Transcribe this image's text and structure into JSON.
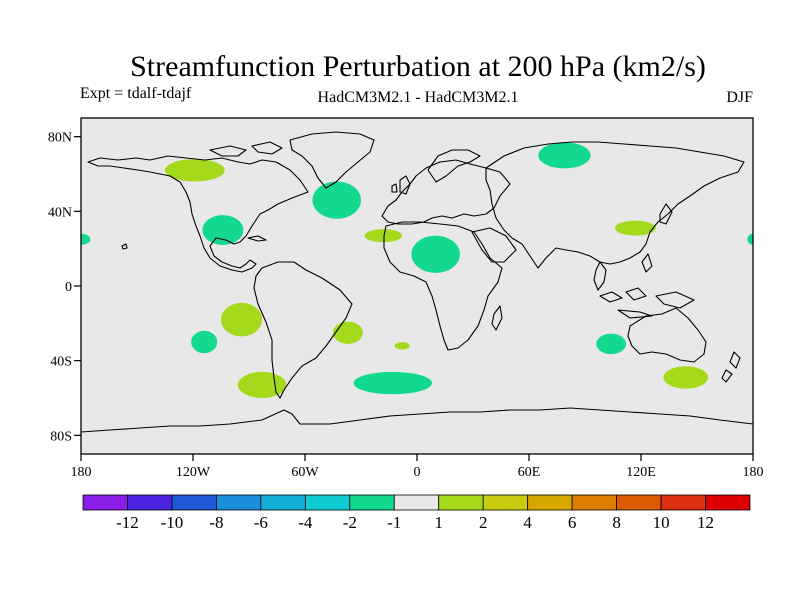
{
  "title": "Streamfunction Perturbation at 200 hPa (km2/s)",
  "experiment_label": "Expt = tdalf-tdajf",
  "model_label": "HadCM3M2.1 - HadCM3M2.1",
  "season_label": "DJF",
  "colors": {
    "background": "#e8e8e8",
    "neg_1_2": "#12d98e",
    "pos_2_4": "#a4d91c"
  },
  "map": {
    "lon_range": [
      -180,
      180
    ],
    "lat_range": [
      -90,
      90
    ],
    "lon_ticks": [
      {
        "value": -180,
        "label": "180"
      },
      {
        "value": -120,
        "label": "120W"
      },
      {
        "value": -60,
        "label": "60W"
      },
      {
        "value": 0,
        "label": "0"
      },
      {
        "value": 60,
        "label": "60E"
      },
      {
        "value": 120,
        "label": "120E"
      },
      {
        "value": 180,
        "label": "180"
      }
    ],
    "lat_ticks": [
      {
        "value": 80,
        "label": "80N"
      },
      {
        "value": 40,
        "label": "40N"
      },
      {
        "value": 0,
        "label": "0"
      },
      {
        "value": -40,
        "label": "40S"
      },
      {
        "value": -80,
        "label": "80S"
      }
    ],
    "anomalies": [
      {
        "lon": -119,
        "lat": 62,
        "rlon": 16,
        "rlat": 6,
        "sign": "pos"
      },
      {
        "lon": -104,
        "lat": 30,
        "rlon": 11,
        "rlat": 8,
        "sign": "neg"
      },
      {
        "lon": -43,
        "lat": 46,
        "rlon": 13,
        "rlat": 10,
        "sign": "neg"
      },
      {
        "lon": -18,
        "lat": 27,
        "rlon": 10,
        "rlat": 3.5,
        "sign": "pos"
      },
      {
        "lon": 10,
        "lat": 17,
        "rlon": 13,
        "rlat": 10,
        "sign": "neg"
      },
      {
        "lon": 79,
        "lat": 70,
        "rlon": 14,
        "rlat": 7,
        "sign": "neg"
      },
      {
        "lon": 117,
        "lat": 31,
        "rlon": 11,
        "rlat": 4,
        "sign": "pos"
      },
      {
        "lon": -180,
        "lat": 25,
        "rlon": 5,
        "rlat": 3,
        "sign": "neg"
      },
      {
        "lon": 180,
        "lat": 25,
        "rlon": 3,
        "rlat": 3,
        "sign": "neg"
      },
      {
        "lon": -94,
        "lat": -18,
        "rlon": 11,
        "rlat": 9,
        "sign": "pos"
      },
      {
        "lon": -114,
        "lat": -30,
        "rlon": 7,
        "rlat": 6,
        "sign": "neg"
      },
      {
        "lon": -37,
        "lat": -25,
        "rlon": 8,
        "rlat": 6,
        "sign": "pos"
      },
      {
        "lon": -8,
        "lat": -32,
        "rlon": 4,
        "rlat": 2,
        "sign": "pos"
      },
      {
        "lon": -83,
        "lat": -53,
        "rlon": 13,
        "rlat": 7,
        "sign": "pos"
      },
      {
        "lon": -13,
        "lat": -52,
        "rlon": 21,
        "rlat": 6,
        "sign": "neg"
      },
      {
        "lon": 104,
        "lat": -31,
        "rlon": 8,
        "rlat": 5.5,
        "sign": "neg"
      },
      {
        "lon": 144,
        "lat": -49,
        "rlon": 12,
        "rlat": 6,
        "sign": "pos"
      }
    ]
  },
  "colorbar": {
    "colors": [
      "#8a1ee6",
      "#4a24e0",
      "#1f58d6",
      "#1a8edb",
      "#12aed6",
      "#10cbd2",
      "#12d98e",
      "#e8e8e8",
      "#a4d91c",
      "#c8cc10",
      "#d8a800",
      "#dc7f00",
      "#dc5a00",
      "#dc2e10",
      "#dc0000"
    ],
    "labels": [
      "-12",
      "-10",
      "-8",
      "-6",
      "-4",
      "-2",
      "-1",
      "1",
      "2",
      "4",
      "6",
      "8",
      "10",
      "12"
    ]
  }
}
